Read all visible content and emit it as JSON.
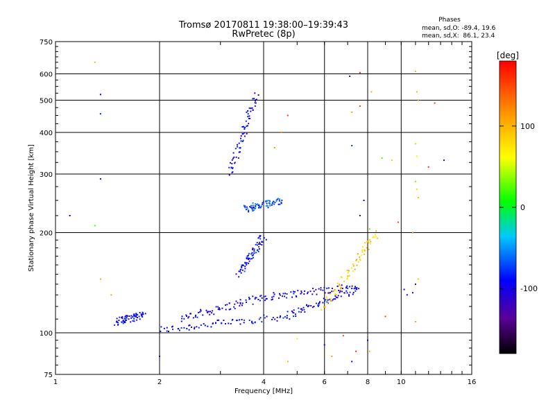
{
  "chart_data": {
    "type": "scatter",
    "title": "Tromsø 20170811 19:38:00–19:39:43",
    "subtitle": "RwPretec (8p)",
    "xlabel": "Frequency [MHz]",
    "ylabel": "Stationary phase Virtual Height [km]",
    "xscale": "log",
    "yscale": "log",
    "xlim": [
      1,
      16
    ],
    "ylim": [
      75,
      750
    ],
    "xticks": [
      1,
      2,
      4,
      6,
      8,
      10,
      16
    ],
    "yticks": [
      75,
      100,
      200,
      300,
      400,
      500,
      600,
      750
    ],
    "grid": true,
    "info": {
      "title": "Phases",
      "line1": "mean, sd,O: -89.4, 19.6",
      "line2": "mean, sd,X:  86.1, 23.4"
    },
    "colorbar": {
      "label": "[deg]",
      "range": [
        -180,
        180
      ],
      "ticks": [
        100,
        0,
        -100
      ],
      "tick_labels": [
        "100",
        "0",
        "-100"
      ],
      "colormap": "rainbow"
    },
    "traces": [
      {
        "x_range": [
          2.0,
          4.6
        ],
        "y_range": [
          102,
          112
        ],
        "phase": -95
      },
      {
        "x_range": [
          4.6,
          7.5
        ],
        "y_range": [
          112,
          136
        ],
        "phase": -95
      },
      {
        "x_range": [
          2.3,
          4.0
        ],
        "y_range": [
          110,
          128
        ],
        "phase": -100
      },
      {
        "x_range": [
          4.0,
          7.5
        ],
        "y_range": [
          128,
          138
        ],
        "phase": -100
      },
      {
        "x_range": [
          3.2,
          3.8
        ],
        "y_range": [
          300,
          520
        ],
        "phase": -95
      },
      {
        "x_range": [
          3.4,
          4.0
        ],
        "y_range": [
          150,
          195
        ],
        "phase": -90
      },
      {
        "x_range": [
          1.5,
          1.8
        ],
        "y_range": [
          108,
          113
        ],
        "phase": -95
      },
      {
        "x_range": [
          6.0,
          8.5
        ],
        "y_range": [
          120,
          200
        ],
        "phase": 90
      },
      {
        "x_range": [
          3.5,
          4.5
        ],
        "y_range": [
          235,
          250
        ],
        "phase": -70
      }
    ],
    "points": [
      {
        "x": 1.1,
        "y": 225,
        "phase": -100
      },
      {
        "x": 1.3,
        "y": 650,
        "phase": 100
      },
      {
        "x": 1.35,
        "y": 520,
        "phase": -90
      },
      {
        "x": 1.35,
        "y": 455,
        "phase": -80
      },
      {
        "x": 1.35,
        "y": 290,
        "phase": -100
      },
      {
        "x": 1.3,
        "y": 210,
        "phase": 20
      },
      {
        "x": 1.35,
        "y": 145,
        "phase": 110
      },
      {
        "x": 1.45,
        "y": 130,
        "phase": 110
      },
      {
        "x": 2.0,
        "y": 85,
        "phase": -100
      },
      {
        "x": 4.5,
        "y": 400,
        "phase": 120
      },
      {
        "x": 4.7,
        "y": 450,
        "phase": 150
      },
      {
        "x": 4.3,
        "y": 360,
        "phase": 110
      },
      {
        "x": 7.1,
        "y": 590,
        "phase": -100
      },
      {
        "x": 7.6,
        "y": 605,
        "phase": 170
      },
      {
        "x": 7.2,
        "y": 460,
        "phase": 110
      },
      {
        "x": 7.6,
        "y": 480,
        "phase": 150
      },
      {
        "x": 8.2,
        "y": 530,
        "phase": 100
      },
      {
        "x": 7.2,
        "y": 365,
        "phase": -80
      },
      {
        "x": 8.8,
        "y": 335,
        "phase": 20
      },
      {
        "x": 9.4,
        "y": 330,
        "phase": 90
      },
      {
        "x": 11.0,
        "y": 610,
        "phase": 100
      },
      {
        "x": 11.1,
        "y": 530,
        "phase": 100
      },
      {
        "x": 11.2,
        "y": 500,
        "phase": 120
      },
      {
        "x": 12.5,
        "y": 490,
        "phase": 150
      },
      {
        "x": 11.0,
        "y": 370,
        "phase": 40
      },
      {
        "x": 11.1,
        "y": 340,
        "phase": 60
      },
      {
        "x": 12.0,
        "y": 315,
        "phase": 160
      },
      {
        "x": 13.3,
        "y": 330,
        "phase": -130
      },
      {
        "x": 11.0,
        "y": 285,
        "phase": 30
      },
      {
        "x": 11.1,
        "y": 270,
        "phase": 80
      },
      {
        "x": 11.2,
        "y": 255,
        "phase": 100
      },
      {
        "x": 7.8,
        "y": 250,
        "phase": -100
      },
      {
        "x": 7.6,
        "y": 225,
        "phase": -120
      },
      {
        "x": 8.1,
        "y": 205,
        "phase": 20
      },
      {
        "x": 9.8,
        "y": 215,
        "phase": 150
      },
      {
        "x": 10.8,
        "y": 200,
        "phase": 120
      },
      {
        "x": 11.0,
        "y": 140,
        "phase": -100
      },
      {
        "x": 10.8,
        "y": 132,
        "phase": -90
      },
      {
        "x": 10.4,
        "y": 130,
        "phase": -95
      },
      {
        "x": 11.2,
        "y": 145,
        "phase": 90
      },
      {
        "x": 10.2,
        "y": 135,
        "phase": -100
      },
      {
        "x": 11.0,
        "y": 108,
        "phase": 110
      },
      {
        "x": 9.0,
        "y": 112,
        "phase": 150
      },
      {
        "x": 8.0,
        "y": 95,
        "phase": -100
      },
      {
        "x": 6.0,
        "y": 92,
        "phase": -90
      },
      {
        "x": 5.0,
        "y": 96,
        "phase": 70
      },
      {
        "x": 6.3,
        "y": 85,
        "phase": 110
      },
      {
        "x": 7.2,
        "y": 82,
        "phase": -90
      },
      {
        "x": 7.4,
        "y": 88,
        "phase": 160
      },
      {
        "x": 4.7,
        "y": 82,
        "phase": 100
      },
      {
        "x": 6.8,
        "y": 98,
        "phase": 150
      },
      {
        "x": 8.1,
        "y": 88,
        "phase": 100
      }
    ]
  }
}
